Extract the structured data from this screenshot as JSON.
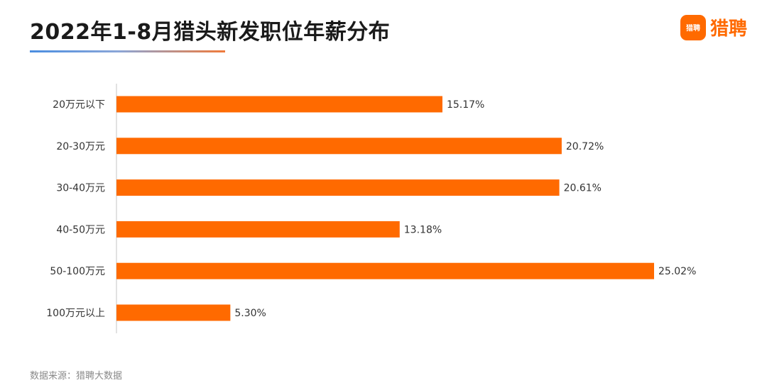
{
  "header": {
    "title": "2022年1-8月猎头新发职位年薪分布",
    "brand_logo_text": "猎聘",
    "brand_name": "猎聘"
  },
  "footer": {
    "source": "数据来源：猎聘大数据"
  },
  "colors": {
    "bar": "#ff6a00",
    "axis": "#d9d9d9",
    "label": "#333333"
  },
  "chart_data": {
    "type": "bar",
    "orientation": "horizontal",
    "title": "2022年1-8月猎头新发职位年薪分布",
    "categories": [
      "20万元以下",
      "20-30万元",
      "30-40万元",
      "40-50万元",
      "50-100万元",
      "100万元以上"
    ],
    "values": [
      15.17,
      20.72,
      20.61,
      13.18,
      25.02,
      5.3
    ],
    "data_labels": [
      "15.17%",
      "20.72%",
      "20.61%",
      "13.18%",
      "25.02%",
      "5.30%"
    ],
    "unit": "%",
    "xlim": [
      0,
      25.02
    ],
    "grid": false,
    "legend": "none"
  }
}
